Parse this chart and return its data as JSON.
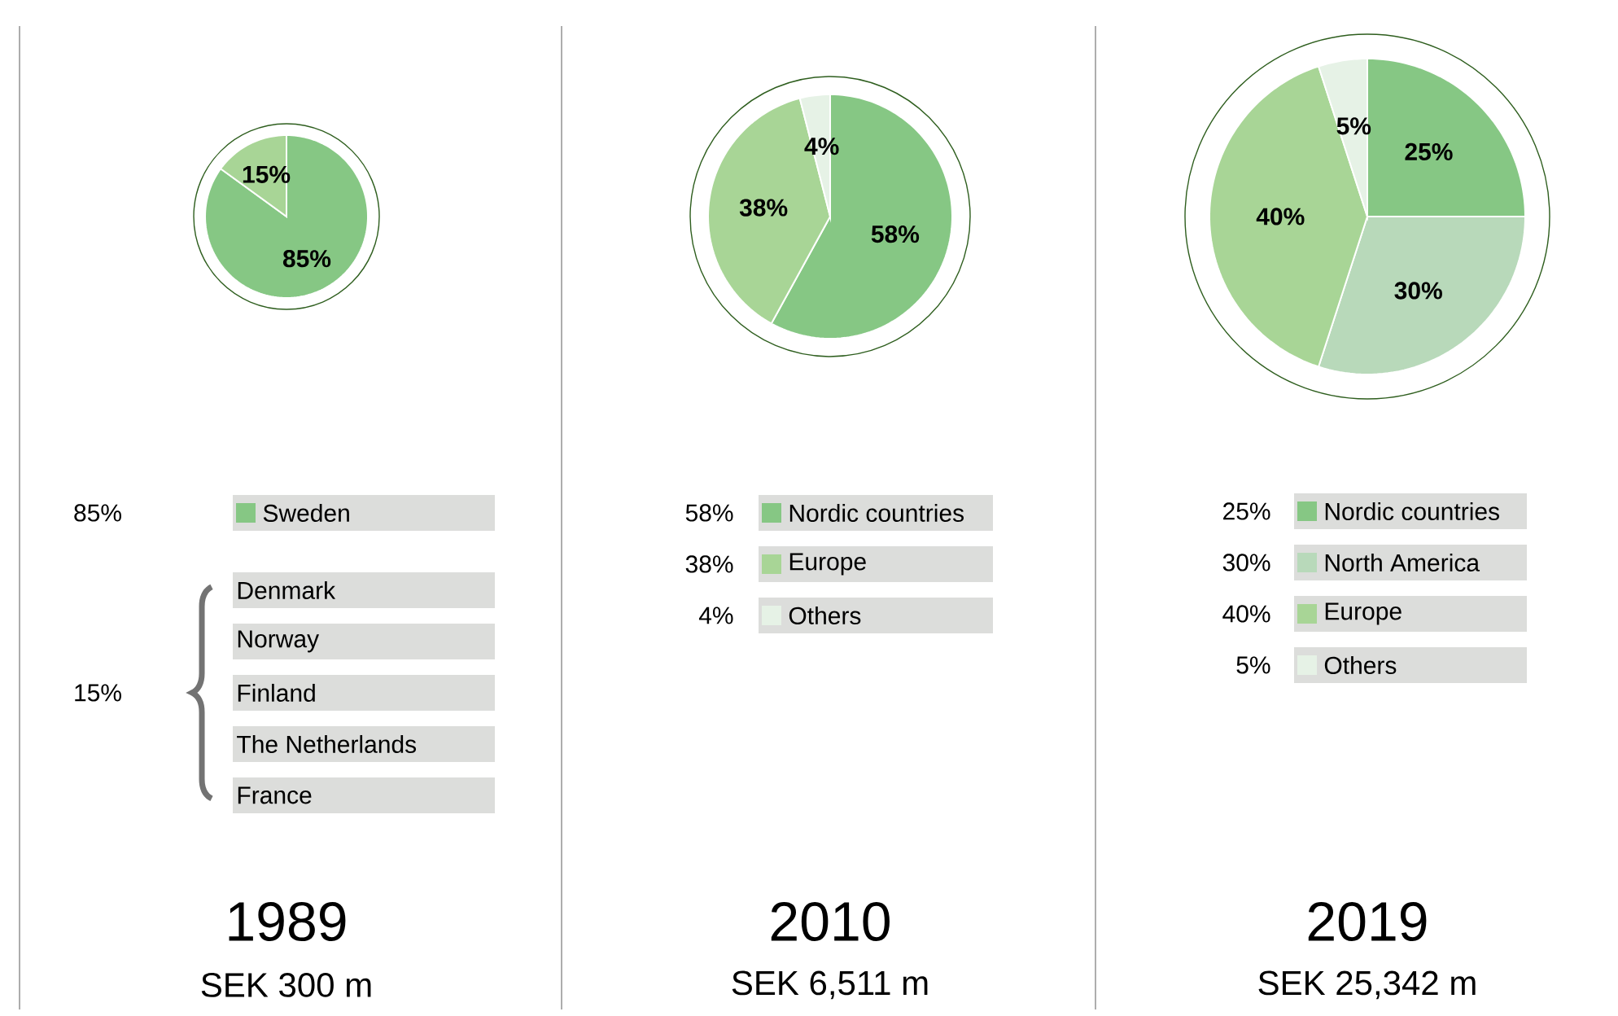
{
  "chart_data": [
    {
      "type": "pie",
      "title": "1989",
      "subtitle": "SEK 300 m",
      "categories": [
        "Sweden",
        null
      ],
      "values": [
        85,
        15
      ],
      "value_labels": [
        "85%",
        "15%"
      ],
      "colors": [
        "#86c784",
        "#a8d596"
      ],
      "legend": "bottom",
      "annotations": [
        "Denmark",
        "Norway",
        "Finland",
        "The Netherlands",
        "France"
      ]
    },
    {
      "type": "pie",
      "title": "2010",
      "subtitle": "SEK 6,511 m",
      "categories": [
        "Nordic countries",
        "Europe",
        "Others"
      ],
      "values": [
        58,
        38,
        4
      ],
      "value_labels": [
        "58%",
        "38%",
        "4%"
      ],
      "colors": [
        "#86c784",
        "#a8d596",
        "#e6f2e6"
      ],
      "legend": "bottom"
    },
    {
      "type": "pie",
      "title": "2019",
      "subtitle": "SEK 25,342 m",
      "categories": [
        "Nordic countries",
        "North America",
        "Europe",
        "Others"
      ],
      "values": [
        25,
        30,
        40,
        5
      ],
      "value_labels": [
        "25%",
        "30%",
        "40%",
        "5%"
      ],
      "colors": [
        "#86c784",
        "#b8d9ba",
        "#a8d596",
        "#e6f2e6"
      ],
      "legend": "bottom"
    }
  ]
}
